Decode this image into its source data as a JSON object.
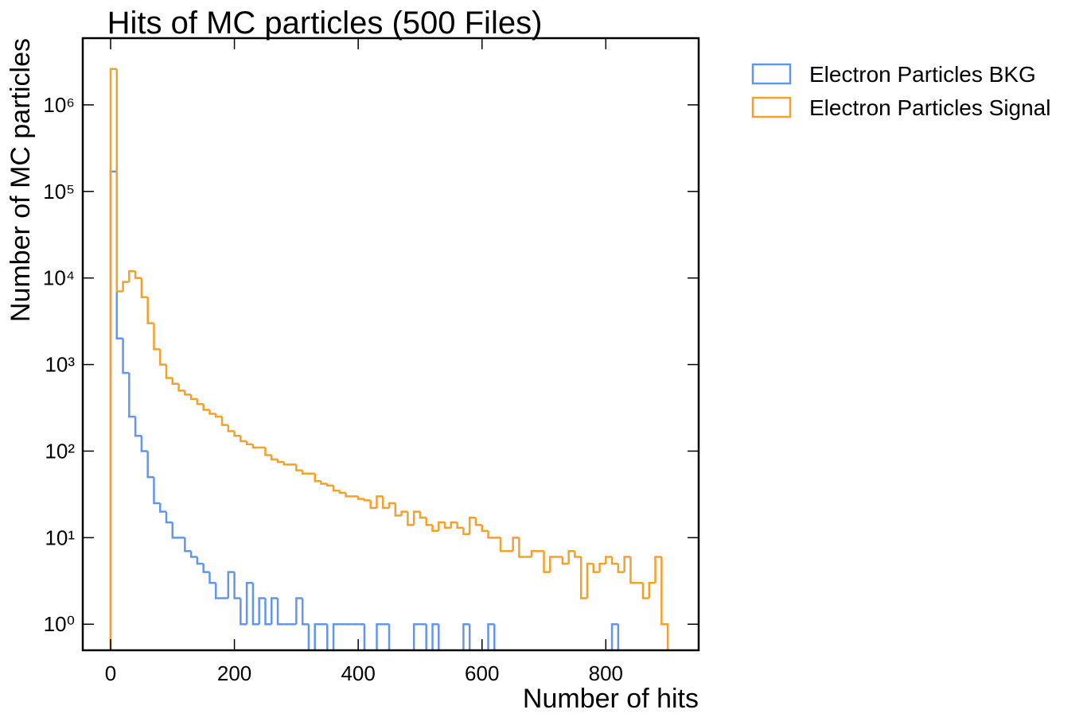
{
  "chart_data": {
    "type": "histogram",
    "title": "Hits of MC particles (500 Files)",
    "x_label": "Number of hits",
    "y_label": "Number of MC particles",
    "log_y": true,
    "legend": "outside-upper-right",
    "bins": [
      0,
      10,
      20,
      30,
      40,
      50,
      60,
      70,
      80,
      90,
      100,
      110,
      120,
      130,
      140,
      150,
      160,
      170,
      180,
      190,
      200,
      210,
      220,
      230,
      240,
      250,
      260,
      270,
      280,
      290,
      300,
      310,
      320,
      330,
      340,
      350,
      360,
      370,
      380,
      390,
      400,
      410,
      420,
      430,
      440,
      450,
      460,
      470,
      480,
      490,
      500,
      510,
      520,
      530,
      540,
      550,
      560,
      570,
      580,
      590,
      600,
      610,
      620,
      630,
      640,
      650,
      660,
      670,
      680,
      690,
      700,
      710,
      720,
      730,
      740,
      750,
      760,
      770,
      780,
      790,
      800,
      810,
      820,
      830,
      840,
      850,
      860,
      870,
      880,
      890,
      900
    ],
    "series": [
      {
        "name": "Electron Particles BKG",
        "color": "#6495ed",
        "values": [
          170000,
          2000,
          800,
          250,
          150,
          100,
          50,
          25,
          20,
          15,
          10,
          10,
          7,
          6,
          5,
          4,
          3,
          2,
          2,
          4,
          2,
          1,
          3,
          1,
          2,
          1,
          2,
          1,
          1,
          1,
          2,
          1,
          0,
          1,
          1,
          0,
          1,
          1,
          1,
          1,
          1,
          0,
          0,
          1,
          1,
          0,
          0,
          0,
          0,
          1,
          1,
          0,
          1,
          0,
          0,
          0,
          0,
          1,
          0,
          0,
          0,
          1,
          0,
          0,
          0,
          0,
          0,
          0,
          0,
          0,
          0,
          0,
          0,
          0,
          0,
          0,
          0,
          0,
          0,
          0,
          0,
          1,
          0,
          0,
          0,
          0,
          0,
          0,
          0,
          0
        ]
      },
      {
        "name": "Electron Particles Signal",
        "color": "#f5a02a",
        "values": [
          2600000,
          7000,
          9000,
          12000,
          10000,
          6000,
          3000,
          1500,
          1000,
          700,
          600,
          500,
          450,
          400,
          350,
          300,
          270,
          250,
          200,
          170,
          150,
          130,
          120,
          110,
          110,
          90,
          80,
          75,
          70,
          70,
          60,
          55,
          55,
          45,
          42,
          40,
          35,
          33,
          30,
          30,
          28,
          27,
          22,
          30,
          22,
          25,
          18,
          20,
          14,
          20,
          17,
          14,
          12,
          15,
          13,
          15,
          13,
          11,
          17,
          14,
          12,
          10,
          10,
          7,
          7,
          10,
          6,
          6,
          7,
          7,
          4,
          6,
          6,
          5,
          7,
          6,
          2,
          5,
          4,
          5,
          6,
          5,
          4,
          6,
          3,
          3,
          2,
          3,
          6,
          1
        ]
      }
    ],
    "xlim": [
      -45,
      950
    ],
    "xticks": [
      0,
      200,
      400,
      600,
      800
    ],
    "ylim": [
      0.5,
      5900000
    ],
    "yticks": [
      {
        "value": 1,
        "label": "10⁰"
      },
      {
        "value": 10,
        "label": "10¹"
      },
      {
        "value": 100,
        "label": "10²"
      },
      {
        "value": 1000,
        "label": "10³"
      },
      {
        "value": 10000,
        "label": "10⁴"
      },
      {
        "value": 100000,
        "label": "10⁵"
      },
      {
        "value": 1000000,
        "label": "10⁶"
      }
    ]
  }
}
